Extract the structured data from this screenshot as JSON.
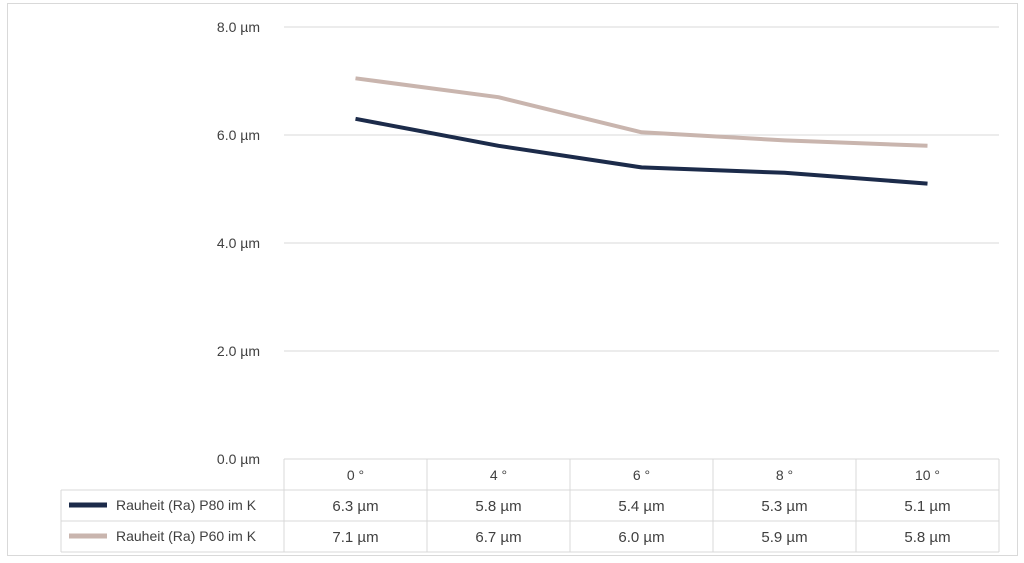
{
  "chart_data": {
    "type": "line",
    "title": "",
    "xlabel": "",
    "ylabel": "",
    "categories": [
      "0 °",
      "4 °",
      "6 °",
      "8 °",
      "10 °"
    ],
    "ylim": [
      0,
      8
    ],
    "y_ticks": [
      "0.0 µm",
      "2.0 µm",
      "4.0 µm",
      "6.0 µm",
      "8.0 µm"
    ],
    "grid": true,
    "legend": "data-table",
    "series": [
      {
        "name": "Rauheit (Ra) P80 im K",
        "color": "#1c2b4a",
        "values": [
          6.3,
          5.8,
          5.4,
          5.3,
          5.1
        ],
        "labels": [
          "6.3 µm",
          "5.8 µm",
          "5.4 µm",
          "5.3 µm",
          "5.1 µm"
        ]
      },
      {
        "name": "Rauheit (Ra) P60 im K",
        "color": "#c9b5ae",
        "values": [
          7.05,
          6.7,
          6.05,
          5.9,
          5.8
        ],
        "labels": [
          "7.1 µm",
          "6.7 µm",
          "6.0 µm",
          "5.9 µm",
          "5.8 µm"
        ]
      }
    ]
  }
}
